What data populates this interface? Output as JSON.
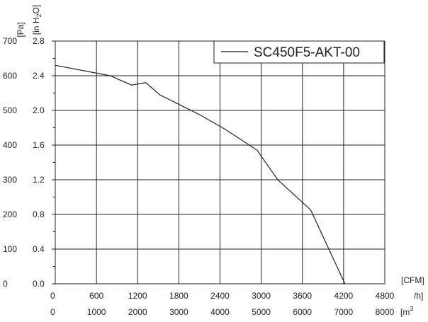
{
  "chart_data": {
    "type": "line",
    "series": [
      {
        "name": "SC450F5-AKT-00",
        "x_cfm": [
          0,
          800,
          1110,
          1320,
          1520,
          2100,
          2480,
          2940,
          3240,
          3720,
          4220
        ],
        "y_pa": [
          630,
          600,
          573,
          580,
          545,
          488,
          445,
          385,
          300,
          213,
          0
        ]
      }
    ],
    "x_axis": {
      "unit_top": "[CFM]",
      "unit_bottom_prefix": "/h]",
      "unit_bottom": "[m",
      "unit_bottom_superscript": "3",
      "range": [
        0,
        4800
      ],
      "ticks_cfm": [
        "0",
        "600",
        "1200",
        "1800",
        "2400",
        "3000",
        "3600",
        "4200",
        "4800"
      ],
      "ticks_m3h": [
        "0",
        "1000",
        "2000",
        "3000",
        "4000",
        "5000",
        "6000",
        "7000",
        "8000"
      ]
    },
    "y_axis": {
      "unit_pa": "[Pa]",
      "unit_inh2o_prefix": "[in H",
      "unit_inh2o_sub": "2",
      "unit_inh2o_suffix": "O]",
      "range": [
        0,
        700
      ],
      "ticks_pa": [
        "0",
        "100",
        "200",
        "300",
        "400",
        "500",
        "600",
        "700"
      ],
      "ticks_inh2o": [
        "0.0",
        "0.4",
        "0.8",
        "1.2",
        "1.6",
        "2.0",
        "2.4",
        "2.8"
      ]
    },
    "grid": true,
    "legend": {
      "position": "top-right",
      "entries": [
        "SC450F5-AKT-00"
      ]
    }
  }
}
